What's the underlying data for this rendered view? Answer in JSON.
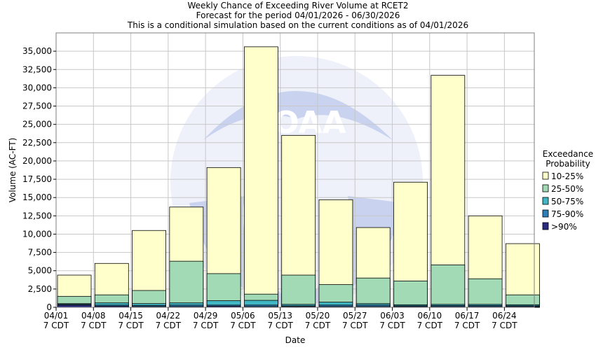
{
  "chart_data": {
    "type": "bar",
    "stacked": true,
    "title": "Weekly Chance of Exceeding River Volume at RCET2",
    "subtitle1": "Forecast for the period 04/01/2026 - 06/30/2026",
    "subtitle2": "This is a conditional simulation based on the current conditions as of 04/01/2026",
    "xlabel": "Date",
    "ylabel": "Volume (AC-FT)",
    "ylim": [
      0,
      37500
    ],
    "yticks": [
      0,
      2500,
      5000,
      7500,
      10000,
      12500,
      15000,
      17500,
      20000,
      22500,
      25000,
      27500,
      30000,
      32500,
      35000
    ],
    "ytick_labels": [
      "0",
      "2,500",
      "5,000",
      "7,500",
      "10,000",
      "12,500",
      "15,000",
      "17,500",
      "20,000",
      "22,500",
      "25,000",
      "27,500",
      "30,000",
      "32,500",
      "35,000"
    ],
    "categories": [
      "04/01",
      "04/08",
      "04/15",
      "04/22",
      "04/29",
      "05/06",
      "05/13",
      "05/20",
      "05/27",
      "06/03",
      "06/10",
      "06/17",
      "06/24"
    ],
    "category_sublabel": "7 CDT",
    "grid": true,
    "legend": {
      "title_line1": "Exceedance",
      "title_line2": "Probability",
      "placement": "right",
      "entries": [
        "10-25%",
        "25-50%",
        "50-75%",
        "75-90%",
        ">90%"
      ]
    },
    "series": [
      {
        "name": ">90%",
        "color": "#2b2b80",
        "tops": [
          300,
          150,
          100,
          100,
          150,
          100,
          100,
          100,
          100,
          100,
          100,
          100,
          100
        ]
      },
      {
        "name": "75-90%",
        "color": "#2e7fb8",
        "tops": [
          400,
          300,
          250,
          300,
          300,
          300,
          200,
          300,
          300,
          200,
          250,
          250,
          200
        ]
      },
      {
        "name": "50-75%",
        "color": "#41b6c4",
        "tops": [
          500,
          600,
          500,
          600,
          900,
          950,
          400,
          700,
          500,
          350,
          400,
          400,
          350
        ]
      },
      {
        "name": "25-50%",
        "color": "#a1dab4",
        "tops": [
          1500,
          1700,
          2300,
          6300,
          4600,
          1800,
          4400,
          3100,
          4000,
          3600,
          5800,
          3900,
          1700
        ]
      },
      {
        "name": "10-25%",
        "color": "#ffffcc",
        "tops": [
          4400,
          6000,
          10500,
          13700,
          19100,
          35600,
          23500,
          14700,
          10900,
          17100,
          31700,
          12500,
          8700
        ]
      }
    ],
    "colors": {
      "grid": "#c8c8c8",
      "bar_outline": "#000000",
      "watermark": "#dfe4f4"
    }
  }
}
